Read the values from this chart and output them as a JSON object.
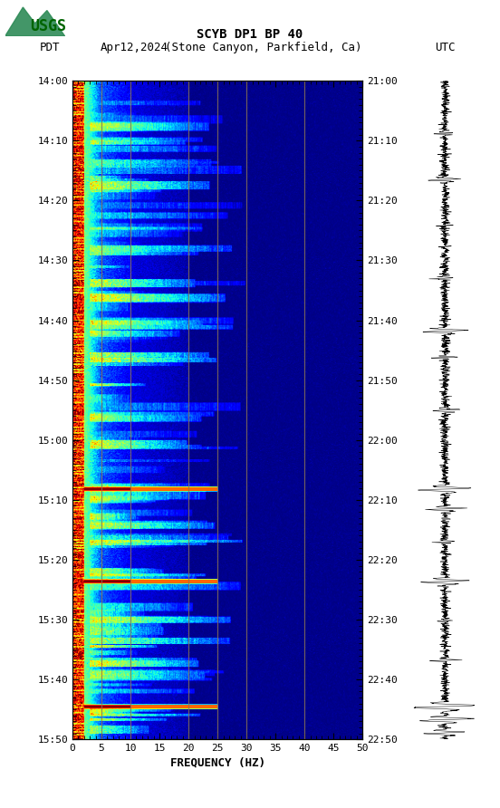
{
  "title_line1": "SCYB DP1 BP 40",
  "title_line2_left": "PDT",
  "title_line2_date": "Apr12,2024",
  "title_line2_loc": "(Stone Canyon, Parkfield, Ca)",
  "title_line2_right": "UTC",
  "left_times": [
    "14:00",
    "14:10",
    "14:20",
    "14:30",
    "14:40",
    "14:50",
    "15:00",
    "15:10",
    "15:20",
    "15:30",
    "15:40",
    "15:50"
  ],
  "right_times": [
    "21:00",
    "21:10",
    "21:20",
    "21:30",
    "21:40",
    "21:50",
    "22:00",
    "22:10",
    "22:20",
    "22:30",
    "22:40",
    "22:50"
  ],
  "freq_min": 0,
  "freq_max": 50,
  "freq_ticks": [
    0,
    5,
    10,
    15,
    20,
    25,
    30,
    35,
    40,
    45,
    50
  ],
  "xlabel": "FREQUENCY (HZ)",
  "n_time": 720,
  "n_freq": 500,
  "background_color": "#ffffff",
  "vertical_lines_freq": [
    5.0,
    10.0,
    20.0,
    25.0,
    30.0,
    40.0
  ],
  "vline_color": "#8B7355",
  "spectrogram_colormap": "jet",
  "fig_width": 5.52,
  "fig_height": 8.92,
  "dpi": 100
}
